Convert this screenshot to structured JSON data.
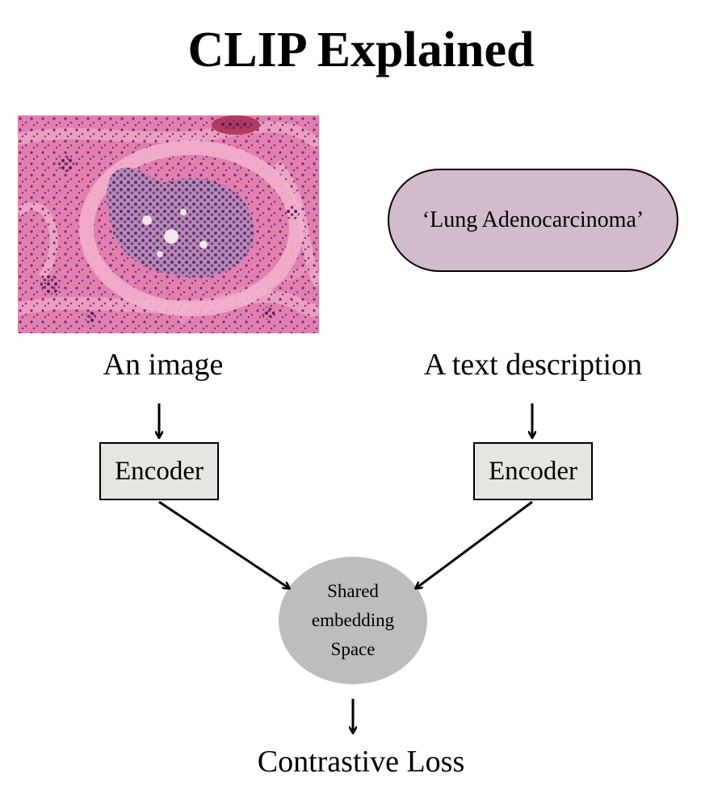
{
  "title": "CLIP Explained",
  "image_input": {
    "label": "An image",
    "tissue_colors": {
      "stroma": "#e27fae",
      "stroma_light": "#f0a8c6",
      "nuclei": "#5a2a6a",
      "lumen": "#f7e4ec"
    }
  },
  "text_input": {
    "text": "‘Lung Adenocarcinoma’",
    "label": "A text description",
    "fill": "#d2bccb"
  },
  "encoders": {
    "left_label": "Encoder",
    "right_label": "Encoder",
    "fill": "#e6e5e1"
  },
  "embedding": {
    "line1": "Shared",
    "line2": "embedding",
    "line3": "Space",
    "fill": "#bdbdbd"
  },
  "loss": {
    "label": "Contrastive Loss"
  }
}
